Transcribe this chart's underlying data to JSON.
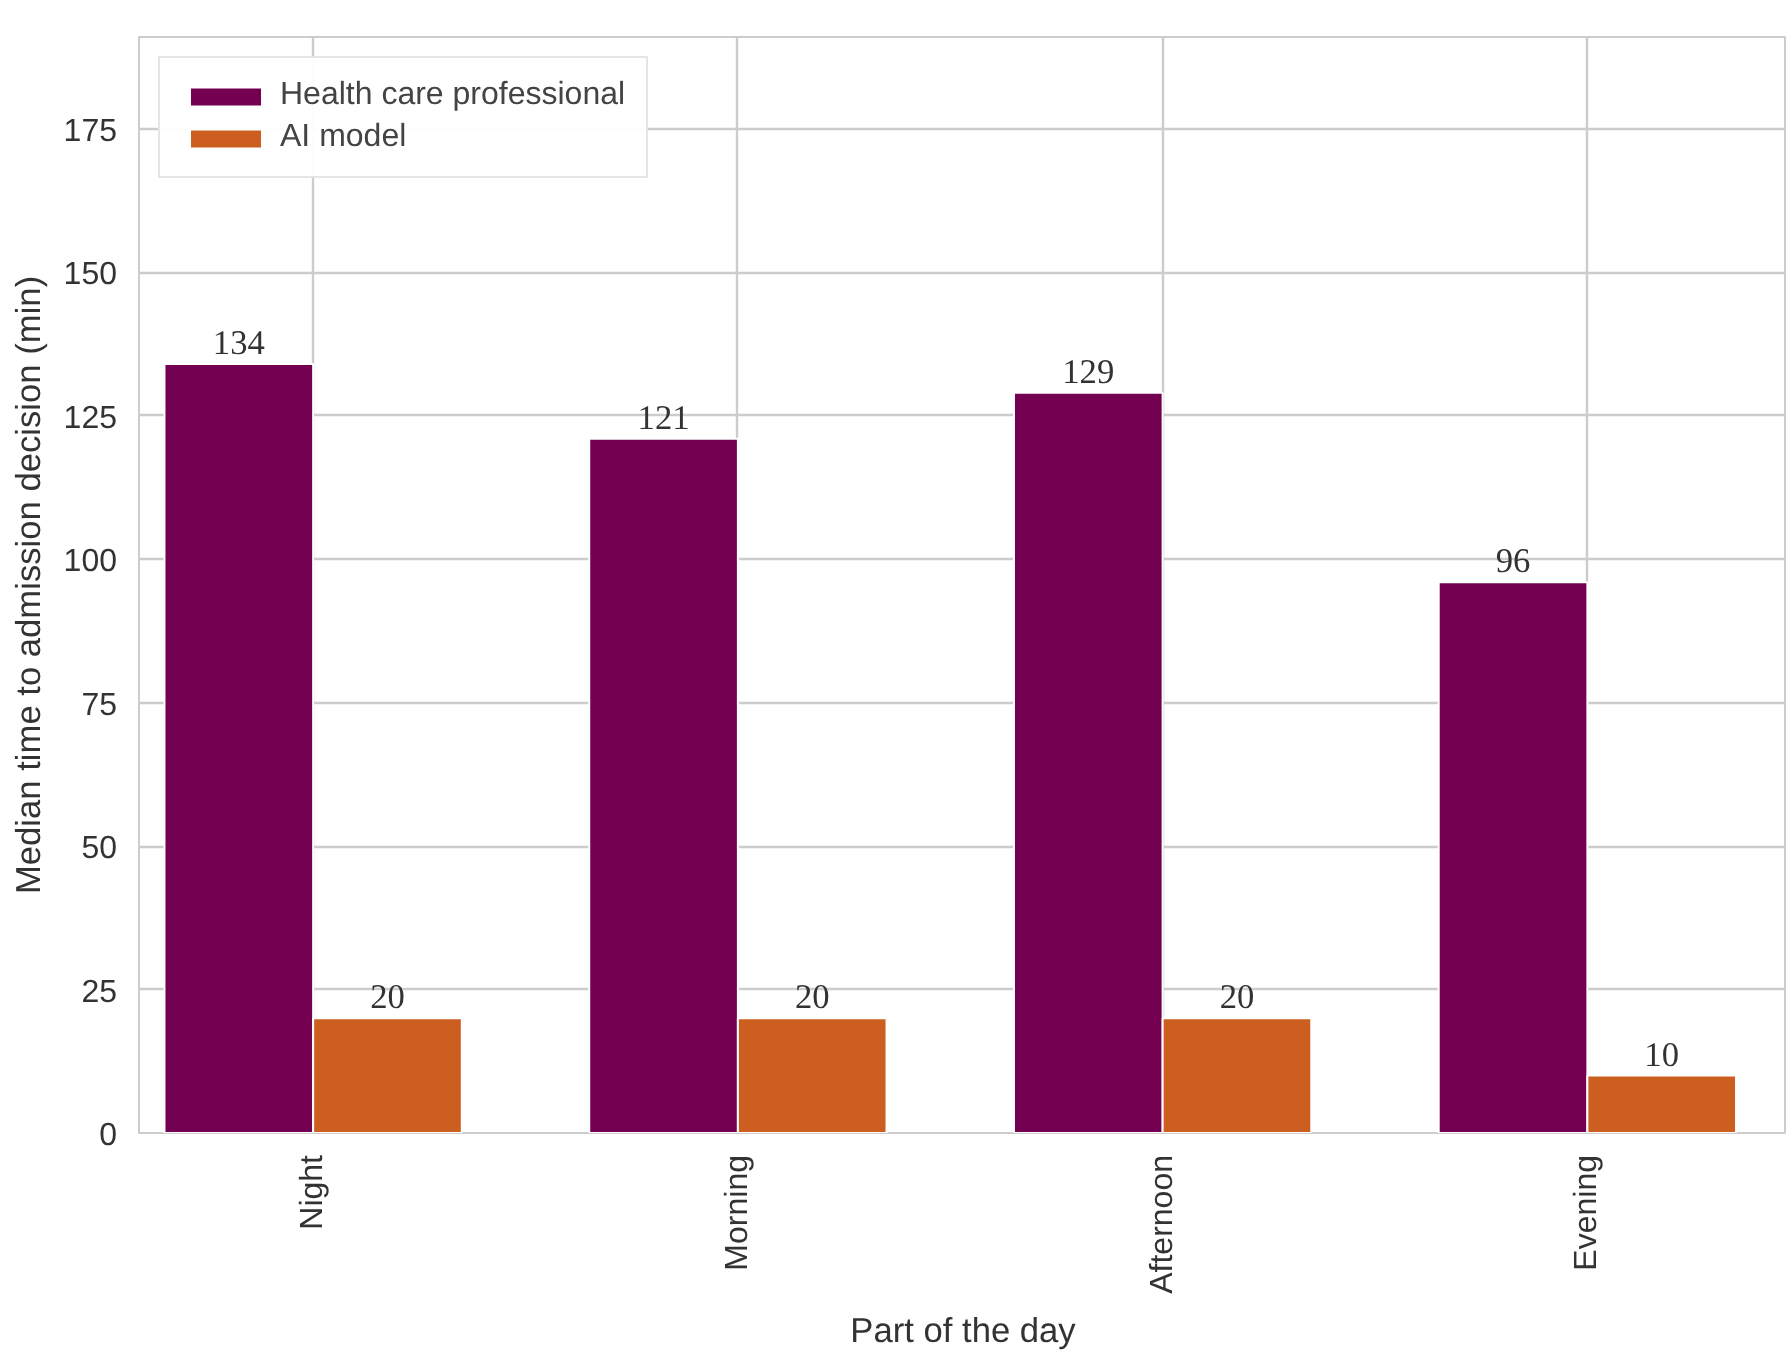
{
  "chart_data": {
    "type": "bar",
    "xlabel": "Part of the day",
    "ylabel": "Median time to admission decision (min)",
    "categories": [
      "Night",
      "Morning",
      "Afternoon",
      "Evening"
    ],
    "series": [
      {
        "name": "Health care professional",
        "color": "#730051",
        "values": [
          134,
          121,
          129,
          96
        ]
      },
      {
        "name": "AI model",
        "color": "#cc5f1f",
        "values": [
          20,
          20,
          20,
          10
        ]
      }
    ],
    "ylim": [
      0,
      191
    ],
    "yticks": [
      0,
      25,
      50,
      75,
      100,
      125,
      150,
      175
    ],
    "grid": true,
    "legend": "top left",
    "data_labels": true
  }
}
